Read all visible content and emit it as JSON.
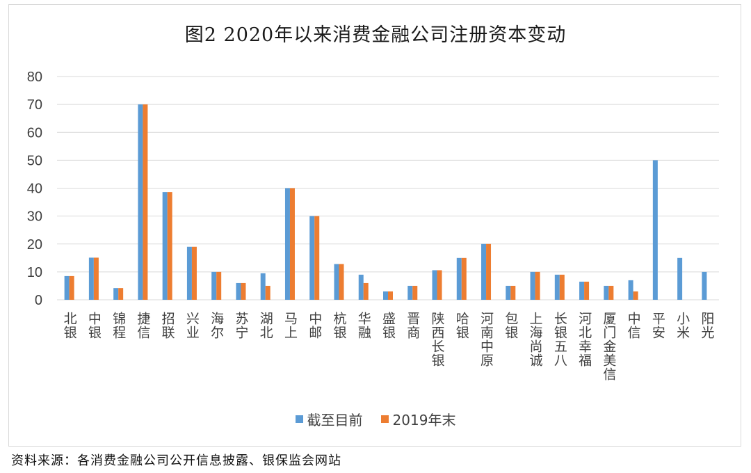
{
  "chart_data": {
    "type": "bar",
    "title": "图2  2020年以来消费金融公司注册资本变动",
    "xlabel": "",
    "ylabel": "",
    "ylim": [
      0,
      80
    ],
    "yticks": [
      0,
      10,
      20,
      30,
      40,
      50,
      60,
      70,
      80
    ],
    "grid": true,
    "legend_position": "bottom",
    "categories": [
      "北银",
      "中银",
      "锦程",
      "捷信",
      "招联",
      "兴业",
      "海尔",
      "苏宁",
      "湖北",
      "马上",
      "中邮",
      "杭银",
      "华融",
      "盛银",
      "晋商",
      "陕西长银",
      "哈银",
      "河南中原",
      "包银",
      "上海尚诚",
      "长银五八",
      "河北幸福",
      "厦门金美信",
      "中信",
      "平安",
      "小米",
      "阳光"
    ],
    "series": [
      {
        "name": "截至目前",
        "color": "#5b9bd5",
        "values": [
          8.5,
          15.1,
          4.2,
          70,
          38.6,
          19,
          10,
          6,
          9.5,
          40,
          30,
          12.8,
          9,
          3,
          5,
          10.6,
          15,
          20,
          5,
          10,
          9,
          6.5,
          5,
          7,
          50,
          15,
          10
        ]
      },
      {
        "name": "2019年末",
        "color": "#ed7d31",
        "values": [
          8.5,
          15.1,
          4.2,
          70,
          38.6,
          19,
          10,
          6,
          5,
          40,
          30,
          12.8,
          6,
          3,
          5,
          10.6,
          15,
          20,
          5,
          10,
          9,
          6.5,
          5,
          3,
          null,
          null,
          null
        ]
      }
    ]
  },
  "source_note": "资料来源：各消费金融公司公开信息披露、银保监会网站"
}
